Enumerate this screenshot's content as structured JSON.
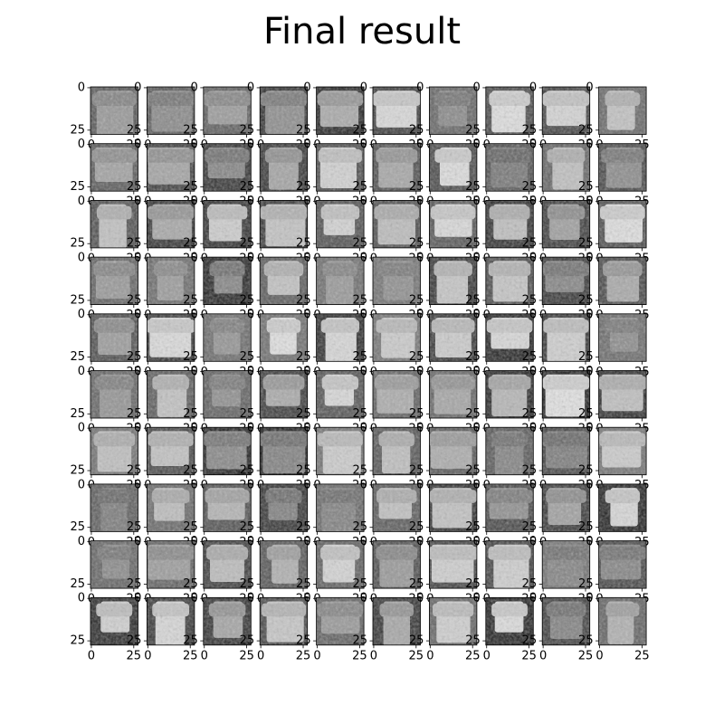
{
  "chart_data": {
    "type": "image_grid",
    "title": "Final result",
    "xlim": [
      -0.5,
      27.5
    ],
    "ylim": [
      27.5,
      -0.5
    ],
    "xticks": [
      0,
      25
    ],
    "yticks": [
      0,
      25
    ],
    "colormap": "gray"
  }
}
